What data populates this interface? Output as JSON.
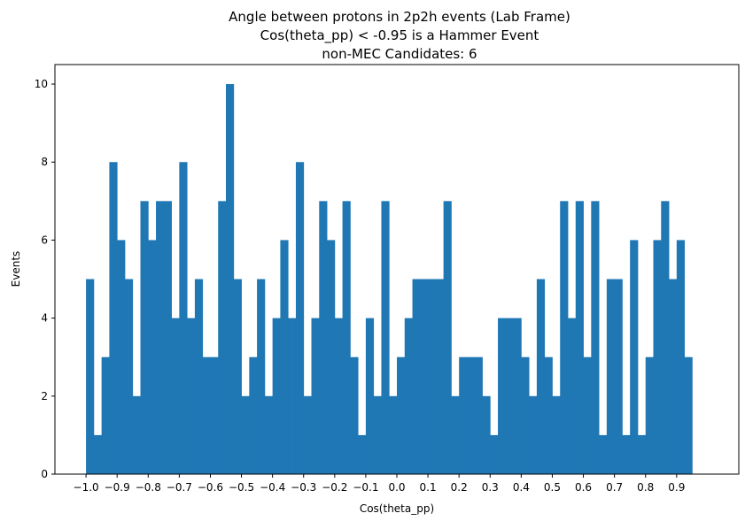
{
  "chart_data": {
    "type": "bar",
    "title_lines": [
      "Angle between protons in 2p2h events (Lab Frame)",
      "Cos(theta_pp) < -0.95 is a Hammer Event",
      "non-MEC Candidates: 6"
    ],
    "xlabel": "Cos(theta_pp)",
    "ylabel": "Events",
    "xlim": [
      -1.1,
      1.1
    ],
    "ylim": [
      0,
      10.5
    ],
    "bin_start": -1.0,
    "bin_width": 0.025,
    "values": [
      5,
      1,
      3,
      8,
      6,
      5,
      2,
      7,
      6,
      7,
      7,
      4,
      8,
      4,
      5,
      3,
      3,
      7,
      10,
      5,
      2,
      3,
      5,
      2,
      4,
      6,
      4,
      8,
      2,
      4,
      7,
      6,
      4,
      7,
      3,
      1,
      4,
      2,
      7,
      2,
      3,
      4,
      5,
      5,
      5,
      5,
      7,
      2,
      3,
      3,
      3,
      2,
      1,
      4,
      4,
      4,
      3,
      2,
      5,
      3,
      2,
      7,
      4,
      7,
      3,
      7,
      1,
      5,
      5,
      1,
      6,
      1,
      3,
      6,
      7,
      5,
      6,
      3
    ],
    "xticks": [
      "−1.0",
      "−0.9",
      "−0.8",
      "−0.7",
      "−0.6",
      "−0.5",
      "−0.4",
      "−0.3",
      "−0.2",
      "−0.1",
      "0.0",
      "0.1",
      "0.2",
      "0.3",
      "0.4",
      "0.5",
      "0.6",
      "0.7",
      "0.8",
      "0.9"
    ],
    "yticks": [
      "0",
      "2",
      "4",
      "6",
      "8",
      "10"
    ],
    "bar_color": "#1f77b4",
    "grid": false,
    "legend": false
  }
}
